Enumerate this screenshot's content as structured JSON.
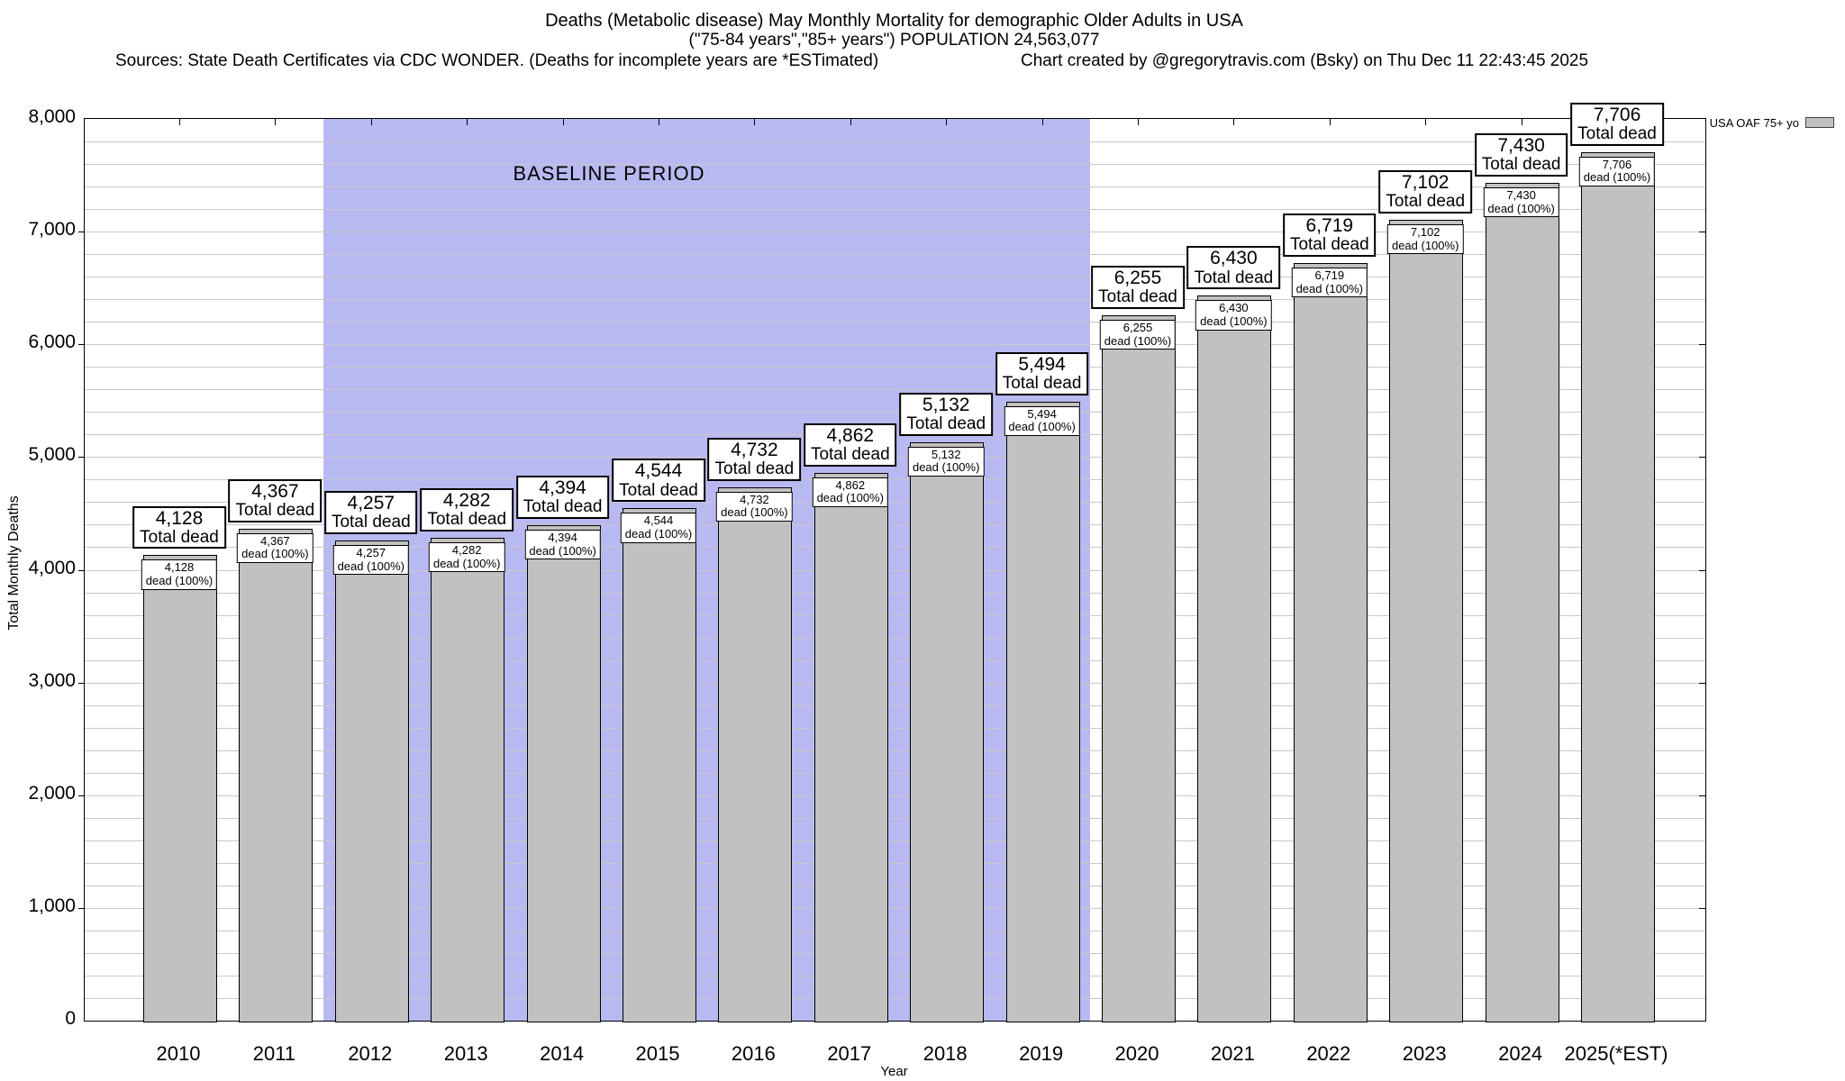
{
  "header": {
    "sources_left": "Sources: State Death Certificates via CDC WONDER. (Deaths for incomplete years are *ESTimated)",
    "credit_right": "Chart created by @gregorytravis.com (Bsky) on Thu Dec 11 22:43:45 2025"
  },
  "chart_data": {
    "type": "bar",
    "title": "Deaths (Metabolic disease) May Monthly Mortality for demographic Older Adults in USA",
    "subtitle": "(\"75-84 years\",\"85+ years\") POPULATION 24,563,077",
    "xlabel": "Year",
    "ylabel": "Total Monthly Deaths",
    "categories": [
      "2010",
      "2011",
      "2012",
      "2013",
      "2014",
      "2015",
      "2016",
      "2017",
      "2018",
      "2019",
      "2020",
      "2021",
      "2022",
      "2023",
      "2024",
      "2025(*EST)"
    ],
    "values": [
      4128,
      4367,
      4257,
      4282,
      4394,
      4544,
      4732,
      4862,
      5132,
      5494,
      6255,
      6430,
      6719,
      7102,
      7430,
      7706
    ],
    "ylim": [
      0,
      8000
    ],
    "ytick_interval": 1000,
    "minor_grid_interval": 200,
    "grid": true,
    "legend": [
      "USA OAF 75+ yo"
    ],
    "legend_position": "outside-top-right",
    "bar_label_top_suffix": "Total dead",
    "bar_label_inner_suffix": "dead (100%)",
    "annotations": {
      "baseline_region": {
        "label": "BASELINE PERIOD",
        "from": "2012",
        "to": "2019"
      }
    },
    "colors": {
      "bar_fill": "#c1c1c1",
      "bar_border": "#000000",
      "baseline_region_fill": "#b9b9f2",
      "gridline": "#c8c8c8",
      "label_box_bg": "#ffffff",
      "text": "#000000"
    }
  }
}
